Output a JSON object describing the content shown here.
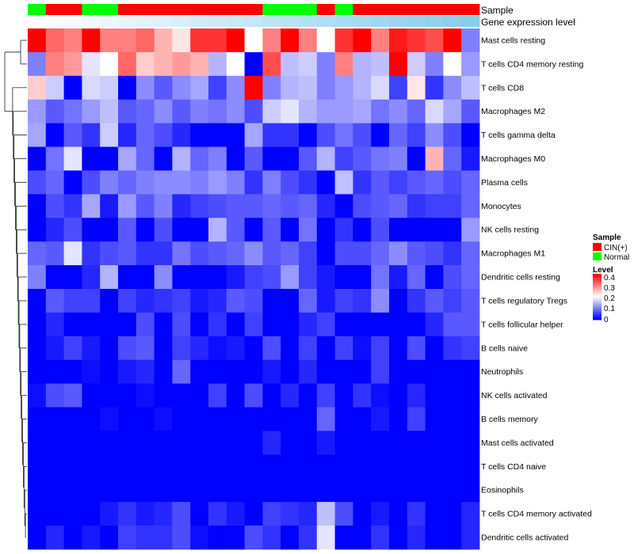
{
  "chart_data": {
    "type": "heatmap",
    "title": "",
    "column_annotations": [
      {
        "name": "Sample",
        "values": [
          "Normal",
          "CIN(+)",
          "CIN(+)",
          "Normal",
          "Normal",
          "CIN(+)",
          "CIN(+)",
          "CIN(+)",
          "CIN(+)",
          "CIN(+)",
          "CIN(+)",
          "CIN(+)",
          "CIN(+)",
          "Normal",
          "Normal",
          "Normal",
          "CIN(+)",
          "Normal",
          "CIN(+)",
          "CIN(+)",
          "CIN(+)",
          "CIN(+)",
          "CIN(+)",
          "CIN(+)",
          "CIN(+)"
        ]
      },
      {
        "name": "Gene expression level",
        "values": [
          0.02,
          0.04,
          0.06,
          0.08,
          0.1,
          0.12,
          0.14,
          0.16,
          0.18,
          0.2,
          0.22,
          0.24,
          0.26,
          0.28,
          0.3,
          0.32,
          0.34,
          0.36,
          0.38,
          0.4,
          0.42,
          0.44,
          0.46,
          0.48,
          0.5
        ]
      }
    ],
    "rows": [
      "Mast cells resting",
      "T cells CD4 memory resting",
      "T cells CD8",
      "Macrophages M2",
      "T cells gamma delta",
      "Macrophages M0",
      "Plasma cells",
      "Monocytes",
      "NK cells resting",
      "Macrophages M1",
      "Dendritic cells resting",
      "T cells regulatory  Tregs",
      "T cells follicular helper",
      "B cells naive",
      "Neutrophils",
      "NK cells activated",
      "B cells memory",
      "Mast cells activated",
      "T cells CD4 naive",
      "Eosinophils",
      "T cells CD4 memory activated",
      "Dendritic cells activated"
    ],
    "values": [
      [
        0.4,
        0.32,
        0.3,
        0.4,
        0.3,
        0.3,
        0.32,
        0.26,
        0.22,
        0.36,
        0.36,
        0.4,
        0.2,
        0.3,
        0.4,
        0.3,
        0.2,
        0.36,
        0.4,
        0.3,
        0.38,
        0.36,
        0.34,
        0.4,
        0.1
      ],
      [
        0.1,
        0.3,
        0.28,
        0.18,
        0.2,
        0.32,
        0.24,
        0.26,
        0.28,
        0.26,
        0.14,
        0.2,
        0.0,
        0.34,
        0.15,
        0.16,
        0.1,
        0.3,
        0.14,
        0.15,
        0.4,
        0.16,
        0.1,
        0.2,
        0.12
      ],
      [
        0.24,
        0.16,
        0.0,
        0.17,
        0.16,
        0.0,
        0.11,
        0.07,
        0.11,
        0.13,
        0.05,
        0.11,
        0.4,
        0.1,
        0.14,
        0.15,
        0.1,
        0.12,
        0.14,
        0.17,
        0.05,
        0.22,
        0.04,
        0.11,
        0.15
      ],
      [
        0.12,
        0.07,
        0.09,
        0.12,
        0.15,
        0.07,
        0.08,
        0.11,
        0.07,
        0.1,
        0.09,
        0.11,
        0.06,
        0.16,
        0.18,
        0.14,
        0.12,
        0.12,
        0.13,
        0.09,
        0.11,
        0.08,
        0.17,
        0.13,
        0.07
      ],
      [
        0.13,
        0.0,
        0.07,
        0.04,
        0.16,
        0.03,
        0.08,
        0.06,
        0.03,
        0.0,
        0.0,
        0.0,
        0.13,
        0.04,
        0.04,
        0.0,
        0.06,
        0.09,
        0.06,
        0.0,
        0.08,
        0.05,
        0.11,
        0.06,
        0.0
      ],
      [
        0.0,
        0.09,
        0.18,
        0.0,
        0.0,
        0.13,
        0.08,
        0.0,
        0.14,
        0.08,
        0.1,
        0.0,
        0.07,
        0.0,
        0.0,
        0.07,
        0.14,
        0.05,
        0.07,
        0.09,
        0.1,
        0.0,
        0.26,
        0.08,
        0.02
      ],
      [
        0.06,
        0.08,
        0.0,
        0.06,
        0.1,
        0.08,
        0.1,
        0.11,
        0.11,
        0.1,
        0.12,
        0.1,
        0.04,
        0.1,
        0.06,
        0.04,
        0.0,
        0.15,
        0.04,
        0.07,
        0.05,
        0.07,
        0.08,
        0.06,
        0.08
      ],
      [
        0.0,
        0.06,
        0.04,
        0.13,
        0.02,
        0.12,
        0.07,
        0.1,
        0.03,
        0.05,
        0.06,
        0.07,
        0.07,
        0.08,
        0.07,
        0.08,
        0.03,
        0.0,
        0.06,
        0.07,
        0.08,
        0.04,
        0.05,
        0.05,
        0.08
      ],
      [
        0.0,
        0.03,
        0.06,
        0.0,
        0.0,
        0.07,
        0.0,
        0.06,
        0.0,
        0.0,
        0.14,
        0.07,
        0.0,
        0.07,
        0.0,
        0.09,
        0.0,
        0.04,
        0.0,
        0.06,
        0.0,
        0.0,
        0.0,
        0.0,
        0.12
      ],
      [
        0.08,
        0.07,
        0.18,
        0.04,
        0.06,
        0.07,
        0.04,
        0.04,
        0.09,
        0.06,
        0.07,
        0.08,
        0.11,
        0.07,
        0.08,
        0.05,
        0.0,
        0.06,
        0.06,
        0.08,
        0.11,
        0.07,
        0.06,
        0.04,
        0.08
      ],
      [
        0.1,
        0.0,
        0.0,
        0.03,
        0.14,
        0.0,
        0.0,
        0.11,
        0.0,
        0.0,
        0.0,
        0.02,
        0.05,
        0.06,
        0.12,
        0.05,
        0.02,
        0.0,
        0.0,
        0.09,
        0.02,
        0.08,
        0.0,
        0.06,
        0.08
      ],
      [
        0.0,
        0.07,
        0.05,
        0.05,
        0.0,
        0.05,
        0.03,
        0.04,
        0.05,
        0.02,
        0.03,
        0.07,
        0.06,
        0.0,
        0.0,
        0.08,
        0.02,
        0.05,
        0.04,
        0.11,
        0.0,
        0.04,
        0.07,
        0.05,
        0.07
      ],
      [
        0.0,
        0.03,
        0.0,
        0.0,
        0.0,
        0.0,
        0.06,
        0.0,
        0.06,
        0.0,
        0.04,
        0.0,
        0.05,
        0.0,
        0.0,
        0.03,
        0.05,
        0.0,
        0.0,
        0.0,
        0.0,
        0.0,
        0.03,
        0.07,
        0.07
      ],
      [
        0.0,
        0.02,
        0.05,
        0.02,
        0.0,
        0.06,
        0.07,
        0.0,
        0.05,
        0.03,
        0.01,
        0.02,
        0.0,
        0.06,
        0.0,
        0.05,
        0.0,
        0.05,
        0.01,
        0.05,
        0.0,
        0.06,
        0.0,
        0.04,
        0.05
      ],
      [
        0.0,
        0.0,
        0.0,
        0.01,
        0.0,
        0.02,
        0.03,
        0.0,
        0.08,
        0.0,
        0.0,
        0.0,
        0.0,
        0.02,
        0.0,
        0.03,
        0.0,
        0.0,
        0.0,
        0.05,
        0.0,
        0.0,
        0.0,
        0.0,
        0.0
      ],
      [
        0.01,
        0.06,
        0.07,
        0.0,
        0.0,
        0.0,
        0.01,
        0.0,
        0.0,
        0.0,
        0.05,
        0.0,
        0.06,
        0.0,
        0.03,
        0.0,
        0.05,
        0.0,
        0.04,
        0.01,
        0.0,
        0.03,
        0.0,
        0.0,
        0.0
      ],
      [
        0.0,
        0.0,
        0.0,
        0.0,
        0.01,
        0.0,
        0.0,
        0.01,
        0.0,
        0.0,
        0.0,
        0.0,
        0.0,
        0.0,
        0.0,
        0.0,
        0.08,
        0.0,
        0.0,
        0.02,
        0.0,
        0.05,
        0.0,
        0.0,
        0.0
      ],
      [
        0.0,
        0.0,
        0.0,
        0.0,
        0.0,
        0.0,
        0.0,
        0.0,
        0.0,
        0.0,
        0.0,
        0.0,
        0.0,
        0.03,
        0.0,
        0.0,
        0.02,
        0.0,
        0.0,
        0.0,
        0.0,
        0.0,
        0.0,
        0.0,
        0.0
      ],
      [
        0.0,
        0.0,
        0.0,
        0.0,
        0.0,
        0.0,
        0.0,
        0.0,
        0.0,
        0.0,
        0.0,
        0.0,
        0.0,
        0.0,
        0.0,
        0.0,
        0.0,
        0.0,
        0.0,
        0.0,
        0.0,
        0.0,
        0.0,
        0.0,
        0.0
      ],
      [
        0.0,
        0.0,
        0.0,
        0.0,
        0.0,
        0.0,
        0.0,
        0.0,
        0.0,
        0.0,
        0.0,
        0.0,
        0.0,
        0.0,
        0.0,
        0.0,
        0.0,
        0.0,
        0.0,
        0.0,
        0.0,
        0.0,
        0.0,
        0.0,
        0.0
      ],
      [
        0.0,
        0.0,
        0.0,
        0.0,
        0.02,
        0.04,
        0.02,
        0.03,
        0.06,
        0.0,
        0.04,
        0.02,
        0.0,
        0.05,
        0.04,
        0.03,
        0.15,
        0.06,
        0.0,
        0.02,
        0.0,
        0.04,
        0.0,
        0.0,
        0.03
      ],
      [
        0.0,
        0.03,
        0.0,
        0.02,
        0.0,
        0.05,
        0.04,
        0.04,
        0.06,
        0.01,
        0.0,
        0.0,
        0.06,
        0.04,
        0.0,
        0.04,
        0.18,
        0.0,
        0.0,
        0.04,
        0.0,
        0.03,
        0.0,
        0.0,
        0.03
      ]
    ],
    "color_scale": {
      "min": 0,
      "max": 0.4,
      "low": "#0000ff",
      "mid": "#ffffff",
      "high": "#ff0000",
      "midpoint": 0.2
    },
    "legends": [
      {
        "title": "Sample",
        "entries": [
          {
            "label": "CIN(+)",
            "color": "#ff0000"
          },
          {
            "label": "Normal",
            "color": "#00ff00"
          }
        ]
      },
      {
        "title": "Level",
        "ticks": [
          "0.4",
          "0.3",
          "0.2",
          "0.1",
          "0"
        ]
      }
    ],
    "annotation_colors": {
      "Sample": {
        "CIN(+)": "#ff0000",
        "Normal": "#00ff00"
      },
      "Gene expression level": {
        "low": "#ffffff",
        "high": "#87ceeb"
      }
    },
    "row_dendrogram": true
  }
}
